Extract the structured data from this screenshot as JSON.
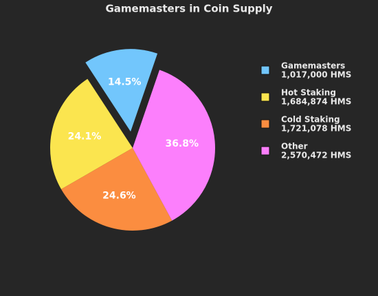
{
  "chart_data": {
    "type": "pie",
    "title": "Gamemasters in Coin Supply",
    "categories": [
      "Gamemasters",
      "Hot Staking",
      "Cold Staking",
      "Other"
    ],
    "amounts": [
      "1,017,000 HMS",
      "1,684,874 HMS",
      "1,721,078 HMS",
      "2,570,472 HMS"
    ],
    "values": [
      14.5,
      24.1,
      24.6,
      36.8
    ],
    "value_labels": [
      "14.5%",
      "24.1%",
      "24.6%",
      "36.8%"
    ],
    "colors": [
      "#72c6fc",
      "#fbe54f",
      "#fb8d40",
      "#fc7ffc"
    ],
    "explode": [
      0.2,
      0,
      0,
      0
    ]
  }
}
